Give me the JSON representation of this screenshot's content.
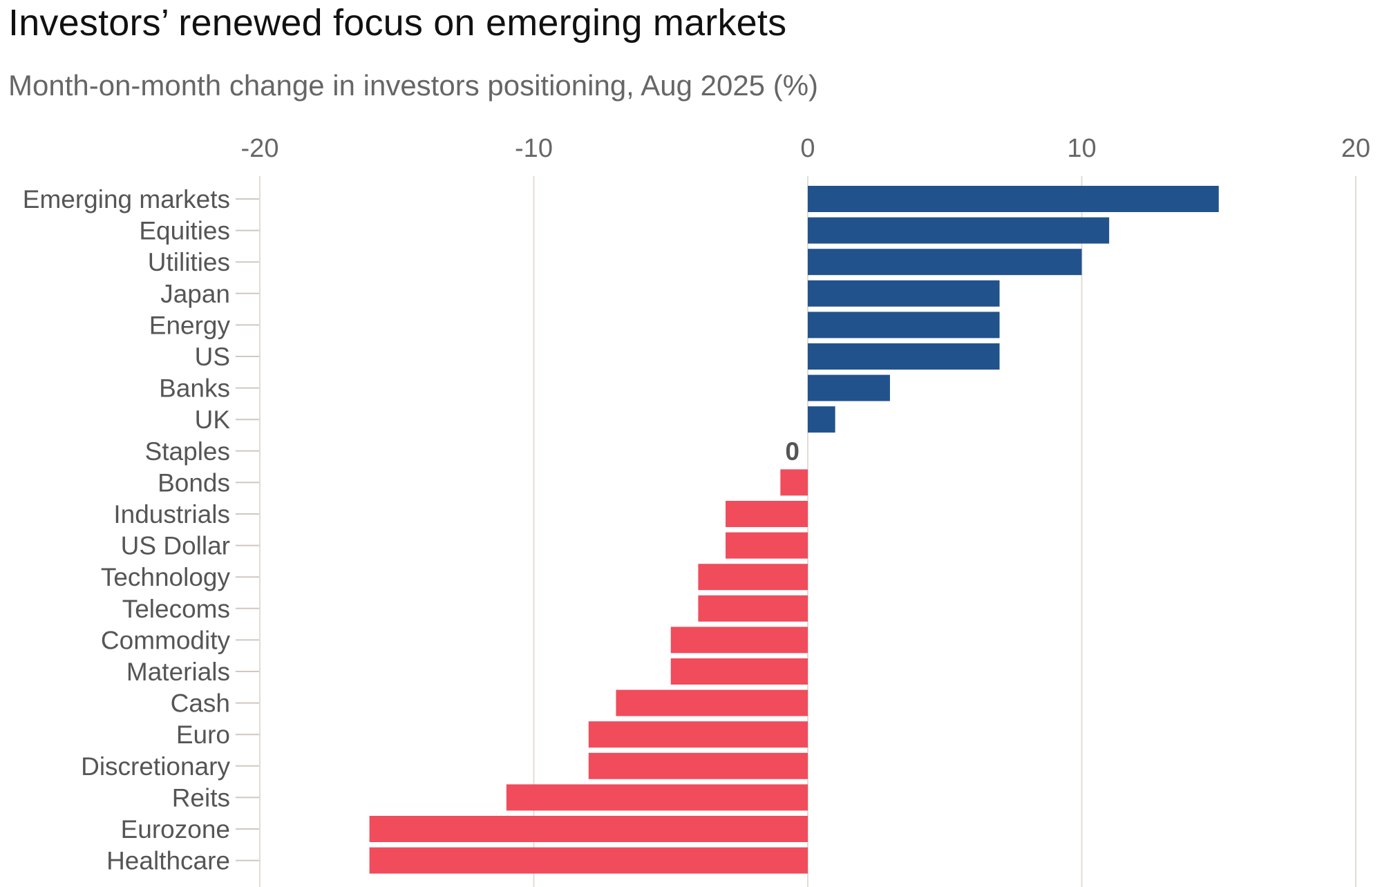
{
  "header": {
    "title": "Investors’ renewed focus on emerging markets",
    "subtitle": "Month-on-month change in investors positioning, Aug 2025 (%)"
  },
  "colors": {
    "positive": "#21528c",
    "negative": "#f04c5c",
    "gridline": "#e2dcd5",
    "tick_mark": "#cfc8c0",
    "label_text": "#555555",
    "axis_text": "#666666"
  },
  "chart_data": {
    "type": "bar",
    "orientation": "horizontal",
    "title": "Investors’ renewed focus on emerging markets",
    "subtitle": "Month-on-month change in investors positioning, Aug 2025 (%)",
    "xlabel": "",
    "ylabel": "",
    "xlim": [
      -20,
      20
    ],
    "x_ticks": [
      -20,
      -10,
      0,
      10,
      20
    ],
    "x_tick_labels": [
      "-20",
      "-10",
      "0",
      "10",
      "20"
    ],
    "x_axis_position": "top",
    "grid": true,
    "legend": "none",
    "categories": [
      "Emerging markets",
      "Equities",
      "Utilities",
      "Japan",
      "Energy",
      "US",
      "Banks",
      "UK",
      "Staples",
      "Bonds",
      "Industrials",
      "US Dollar",
      "Technology",
      "Telecoms",
      "Commodity",
      "Materials",
      "Cash",
      "Euro",
      "Discretionary",
      "Reits",
      "Eurozone",
      "Healthcare"
    ],
    "values": [
      15,
      11,
      10,
      7,
      7,
      7,
      3,
      1,
      0,
      -1,
      -3,
      -3,
      -4,
      -4,
      -5,
      -5,
      -7,
      -8,
      -8,
      -11,
      -16,
      -16
    ],
    "annotations": [
      {
        "category": "Staples",
        "text": "0"
      }
    ]
  }
}
